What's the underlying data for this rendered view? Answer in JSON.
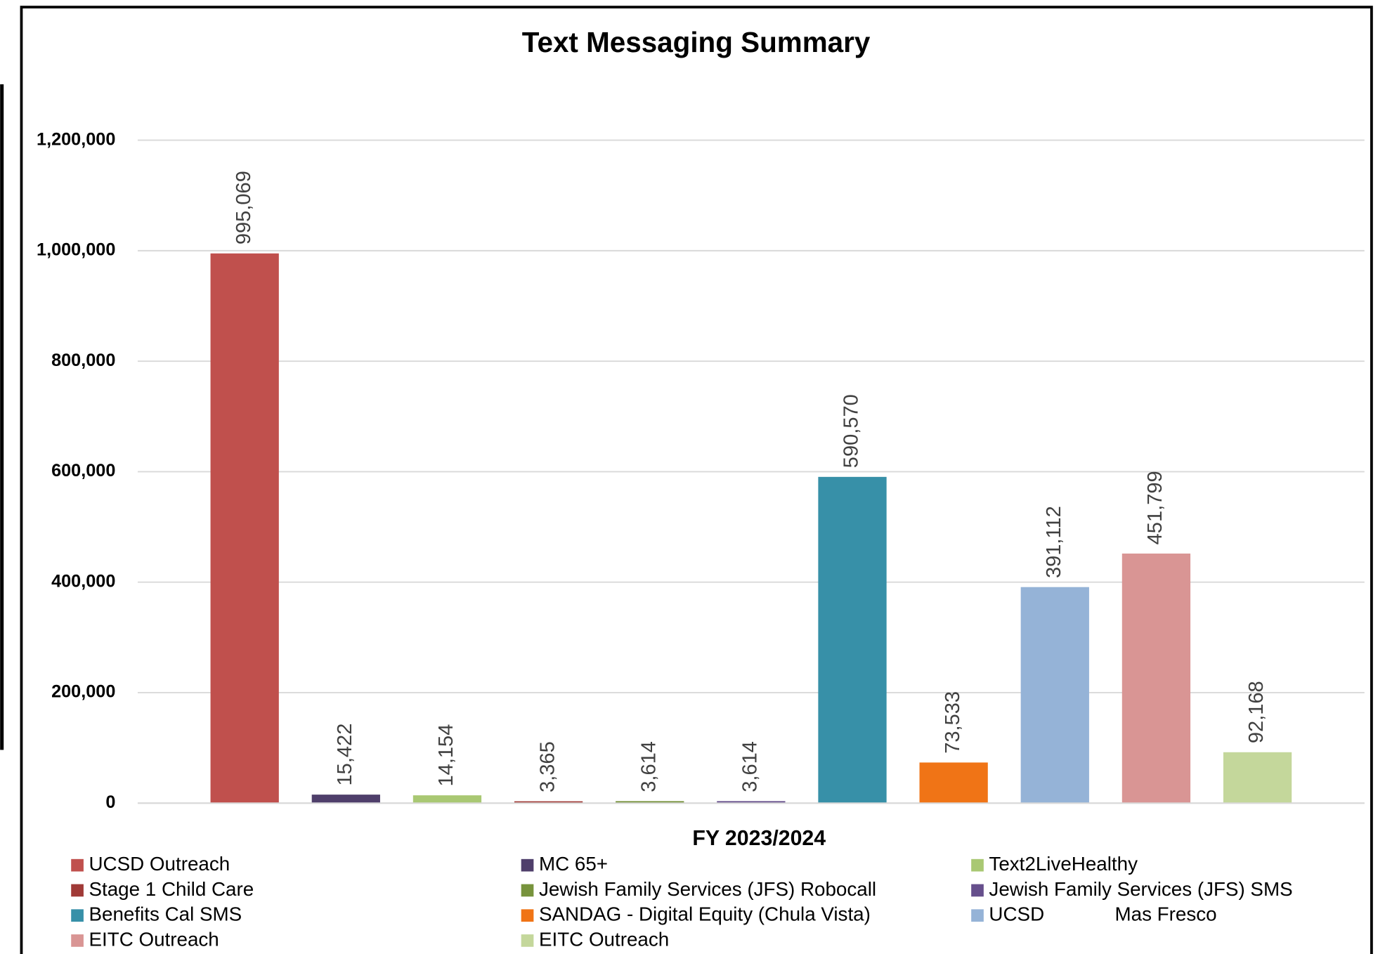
{
  "chart_data": {
    "type": "bar",
    "title": "Text Messaging Summary",
    "x_label": "FY 2023/2024",
    "ylim": [
      0,
      1200000
    ],
    "yticks": [
      0,
      {
        "value": 200000,
        "label": "200,000"
      },
      {
        "value": 400000,
        "label": "400,000"
      },
      {
        "value": 600000,
        "label": "600,000"
      },
      {
        "value": 800000,
        "label": "800,000"
      },
      {
        "value": 1000000,
        "label": "1,000,000"
      },
      {
        "value": 1200000,
        "label": "1,200,000"
      }
    ],
    "grid": true,
    "legend": "bottom",
    "series": [
      {
        "name": "UCSD Outreach",
        "color": "#c0504d",
        "values": [
          995069
        ],
        "value_labels": [
          "995,069"
        ]
      },
      {
        "name": "MC 65+",
        "color": "#4f3f6b",
        "values": [
          15422
        ],
        "value_labels": [
          "15,422"
        ]
      },
      {
        "name": "Text2LiveHealthy",
        "color": "#a9c873",
        "values": [
          14154
        ],
        "value_labels": [
          "14,154"
        ]
      },
      {
        "name": "Stage 1 Child Care",
        "color": "#a03a37",
        "values": [
          3365
        ],
        "value_labels": [
          "3,365"
        ]
      },
      {
        "name": "Jewish Family Services (JFS) Robocall",
        "color": "#77933c",
        "values": [
          3614
        ],
        "value_labels": [
          "3,614"
        ]
      },
      {
        "name": "Jewish Family Services (JFS) SMS",
        "color": "#664f8c",
        "values": [
          3614
        ],
        "value_labels": [
          "3,614"
        ]
      },
      {
        "name": "Benefits Cal SMS",
        "color": "#3790a8",
        "values": [
          590570
        ],
        "value_labels": [
          "590,570"
        ]
      },
      {
        "name": "SANDAG - Digital Equity (Chula Vista)",
        "color": "#f07416",
        "values": [
          73533
        ],
        "value_labels": [
          "73,533"
        ]
      },
      {
        "name": "UCSD             Mas Fresco",
        "color": "#95b3d7",
        "values": [
          391112
        ],
        "value_labels": [
          "391,112"
        ]
      },
      {
        "name": "EITC Outreach",
        "color": "#d99594",
        "values": [
          451799
        ],
        "value_labels": [
          "451,799"
        ]
      },
      {
        "name": "EITC Outreach",
        "color": "#c4d79b",
        "values": [
          92168
        ],
        "value_labels": [
          "92,168"
        ]
      }
    ]
  }
}
